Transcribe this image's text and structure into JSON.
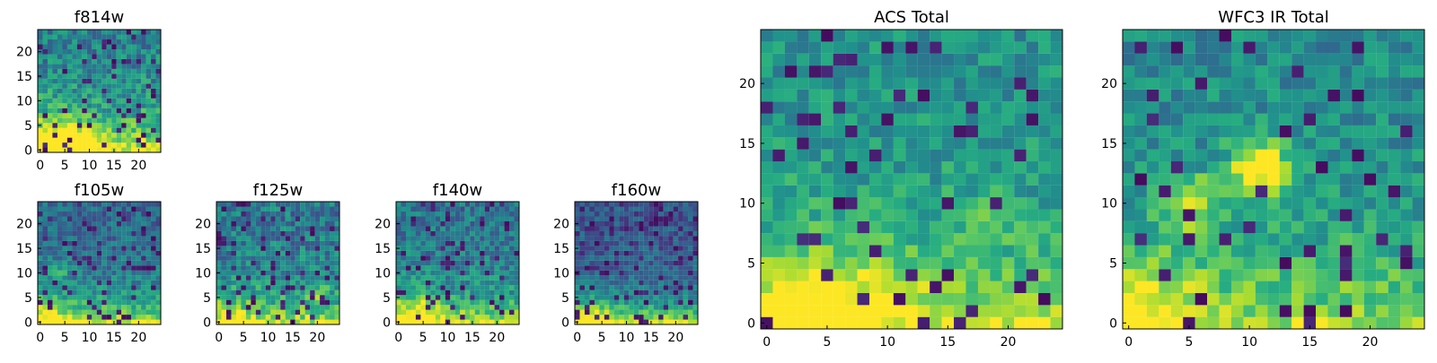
{
  "chart_data": [
    {
      "type": "heatmap",
      "id": "f814w",
      "title": "f814w",
      "xlabel": "",
      "ylabel": "",
      "grid_size": [
        25,
        25
      ],
      "xlim": [
        0,
        25
      ],
      "ylim": [
        0,
        25
      ],
      "x_ticks": [
        0,
        5,
        10,
        15,
        20
      ],
      "y_ticks": [
        0,
        5,
        10,
        15,
        20
      ],
      "x_tick_labels": [
        "0",
        "5",
        "10",
        "15",
        "20"
      ],
      "y_tick_labels": [
        "0",
        "5",
        "10",
        "15",
        "20"
      ],
      "colormap": "viridis",
      "value_range": [
        0,
        1
      ],
      "pattern": {
        "base": 0.42,
        "bottom_boost": 0.52,
        "boost_falloff_rows": 7,
        "left_bias": 0.12,
        "noise": 0.35,
        "dark_spot_chance": 0.09,
        "seed": 814,
        "hotspots": [
          {
            "x": 2,
            "y": 1,
            "r": 3.2,
            "v": 0.28
          },
          {
            "x": 6,
            "y": 2,
            "r": 2.5,
            "v": 0.22
          },
          {
            "x": 10,
            "y": 2,
            "r": 2.0,
            "v": 0.14
          }
        ]
      }
    },
    {
      "type": "heatmap",
      "id": "f105w",
      "title": "f105w",
      "xlabel": "",
      "ylabel": "",
      "grid_size": [
        25,
        25
      ],
      "xlim": [
        0,
        25
      ],
      "ylim": [
        0,
        25
      ],
      "x_ticks": [
        0,
        5,
        10,
        15,
        20
      ],
      "y_ticks": [
        0,
        5,
        10,
        15,
        20
      ],
      "x_tick_labels": [
        "0",
        "5",
        "10",
        "15",
        "20"
      ],
      "y_tick_labels": [
        "0",
        "5",
        "10",
        "15",
        "20"
      ],
      "colormap": "viridis",
      "value_range": [
        0,
        1
      ],
      "pattern": {
        "base": 0.33,
        "bottom_boost": 0.58,
        "boost_falloff_rows": 5,
        "left_bias": 0.1,
        "noise": 0.28,
        "dark_spot_chance": 0.12,
        "seed": 105,
        "hotspots": [
          {
            "x": 4,
            "y": 10,
            "r": 1.4,
            "v": 0.2
          },
          {
            "x": 1,
            "y": 1,
            "r": 2.5,
            "v": 0.18
          }
        ]
      }
    },
    {
      "type": "heatmap",
      "id": "f125w",
      "title": "f125w",
      "xlabel": "",
      "ylabel": "",
      "grid_size": [
        25,
        25
      ],
      "xlim": [
        0,
        25
      ],
      "ylim": [
        0,
        25
      ],
      "x_ticks": [
        0,
        5,
        10,
        15,
        20
      ],
      "y_ticks": [
        0,
        5,
        10,
        15,
        20
      ],
      "x_tick_labels": [
        "0",
        "5",
        "10",
        "15",
        "20"
      ],
      "y_tick_labels": [
        "0",
        "5",
        "10",
        "15",
        "20"
      ],
      "colormap": "viridis",
      "value_range": [
        0,
        1
      ],
      "pattern": {
        "base": 0.4,
        "bottom_boost": 0.5,
        "boost_falloff_rows": 5,
        "left_bias": 0.08,
        "noise": 0.36,
        "dark_spot_chance": 0.12,
        "seed": 125,
        "hotspots": [
          {
            "x": 20,
            "y": 6,
            "r": 1.5,
            "v": 0.22
          },
          {
            "x": 2,
            "y": 1,
            "r": 2.5,
            "v": 0.18
          }
        ]
      }
    },
    {
      "type": "heatmap",
      "id": "f140w",
      "title": "f140w",
      "xlabel": "",
      "ylabel": "",
      "grid_size": [
        25,
        25
      ],
      "xlim": [
        0,
        25
      ],
      "ylim": [
        0,
        25
      ],
      "x_ticks": [
        0,
        5,
        10,
        15,
        20
      ],
      "y_ticks": [
        0,
        5,
        10,
        15,
        20
      ],
      "x_tick_labels": [
        "0",
        "5",
        "10",
        "15",
        "20"
      ],
      "y_tick_labels": [
        "0",
        "5",
        "10",
        "15",
        "20"
      ],
      "colormap": "viridis",
      "value_range": [
        0,
        1
      ],
      "pattern": {
        "base": 0.38,
        "bottom_boost": 0.54,
        "boost_falloff_rows": 5,
        "left_bias": 0.1,
        "noise": 0.32,
        "dark_spot_chance": 0.1,
        "seed": 140,
        "hotspots": [
          {
            "x": 2,
            "y": 1,
            "r": 3.0,
            "v": 0.2
          },
          {
            "x": 6,
            "y": 3,
            "r": 2.0,
            "v": 0.14
          }
        ]
      }
    },
    {
      "type": "heatmap",
      "id": "f160w",
      "title": "f160w",
      "xlabel": "",
      "ylabel": "",
      "grid_size": [
        25,
        25
      ],
      "xlim": [
        0,
        25
      ],
      "ylim": [
        0,
        25
      ],
      "x_ticks": [
        0,
        5,
        10,
        15,
        20
      ],
      "y_ticks": [
        0,
        5,
        10,
        15,
        20
      ],
      "x_tick_labels": [
        "0",
        "5",
        "10",
        "15",
        "20"
      ],
      "y_tick_labels": [
        "0",
        "5",
        "10",
        "15",
        "20"
      ],
      "colormap": "viridis",
      "value_range": [
        0,
        1
      ],
      "pattern": {
        "base": 0.27,
        "bottom_boost": 0.66,
        "boost_falloff_rows": 4,
        "left_bias": 0.08,
        "noise": 0.24,
        "dark_spot_chance": 0.16,
        "seed": 160,
        "hotspots": [
          {
            "x": 3,
            "y": 1,
            "r": 2.8,
            "v": 0.22
          }
        ]
      }
    },
    {
      "type": "heatmap",
      "id": "acs-total",
      "title": "ACS Total",
      "xlabel": "",
      "ylabel": "",
      "grid_size": [
        25,
        25
      ],
      "xlim": [
        0,
        25
      ],
      "ylim": [
        0,
        25
      ],
      "x_ticks": [
        0,
        5,
        10,
        15,
        20
      ],
      "y_ticks": [
        0,
        5,
        10,
        15,
        20
      ],
      "x_tick_labels": [
        "0",
        "5",
        "10",
        "15",
        "20"
      ],
      "y_tick_labels": [
        "0",
        "5",
        "10",
        "15",
        "20"
      ],
      "colormap": "viridis",
      "value_range": [
        0,
        1
      ],
      "pattern": {
        "base": 0.5,
        "bottom_boost": 0.42,
        "boost_falloff_rows": 6,
        "left_bias": 0.06,
        "noise": 0.27,
        "dark_spot_chance": 0.075,
        "seed": 777,
        "hotspots": [
          {
            "x": 2,
            "y": 1,
            "r": 3.3,
            "v": 0.22
          },
          {
            "x": 6,
            "y": 2,
            "r": 2.6,
            "v": 0.18
          },
          {
            "x": 11,
            "y": 3,
            "r": 2.0,
            "v": 0.12
          },
          {
            "x": 18,
            "y": 9,
            "r": 1.6,
            "v": 0.08
          }
        ]
      }
    },
    {
      "type": "heatmap",
      "id": "wfc3-ir-total",
      "title": "WFC3 IR Total",
      "xlabel": "",
      "ylabel": "",
      "grid_size": [
        25,
        25
      ],
      "xlim": [
        0,
        25
      ],
      "ylim": [
        0,
        25
      ],
      "x_ticks": [
        0,
        5,
        10,
        15,
        20
      ],
      "y_ticks": [
        0,
        5,
        10,
        15,
        20
      ],
      "x_tick_labels": [
        "0",
        "5",
        "10",
        "15",
        "20"
      ],
      "y_tick_labels": [
        "0",
        "5",
        "10",
        "15",
        "20"
      ],
      "colormap": "viridis",
      "value_range": [
        0,
        1
      ],
      "pattern": {
        "base": 0.47,
        "bottom_boost": 0.38,
        "boost_falloff_rows": 6,
        "left_bias": 0.06,
        "noise": 0.28,
        "dark_spot_chance": 0.075,
        "seed": 999,
        "hotspots": [
          {
            "x": 11,
            "y": 13,
            "r": 1.7,
            "v": 0.62
          },
          {
            "x": 5,
            "y": 10,
            "r": 1.5,
            "v": 0.45
          },
          {
            "x": 2,
            "y": 1,
            "r": 3.1,
            "v": 0.22
          },
          {
            "x": 19,
            "y": 5,
            "r": 1.7,
            "v": 0.1
          }
        ]
      }
    }
  ]
}
